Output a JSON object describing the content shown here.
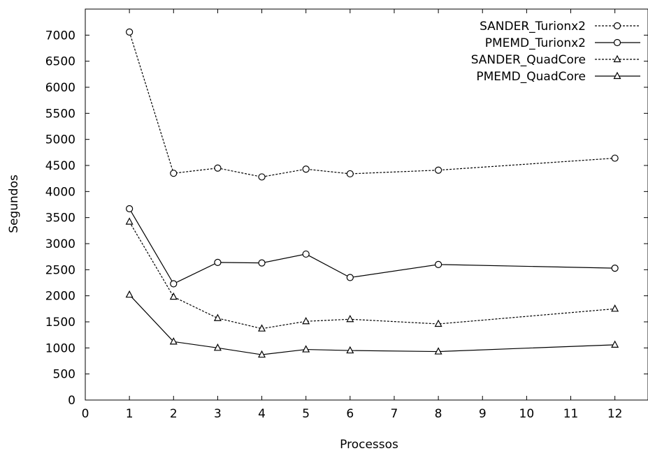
{
  "chart_data": {
    "type": "line",
    "xlabel": "Processos",
    "ylabel": "Segundos",
    "xlim": [
      0,
      12.75
    ],
    "ylim": [
      0,
      7500
    ],
    "xticks": [
      "0",
      "1",
      "2",
      "3",
      "4",
      "5",
      "6",
      "7",
      "8",
      "9",
      "10",
      "11",
      "12"
    ],
    "yticks": [
      "0",
      "500",
      "1000",
      "1500",
      "2000",
      "2500",
      "3000",
      "3500",
      "4000",
      "4500",
      "5000",
      "5500",
      "6000",
      "6500",
      "7000"
    ],
    "grid": false,
    "legend_position": "top-right",
    "x": [
      1,
      2,
      3,
      4,
      5,
      6,
      8,
      12
    ],
    "series": [
      {
        "name": "SANDER_Turionx2",
        "marker": "circle",
        "dash": "dashed",
        "values": [
          7060,
          4350,
          4450,
          4280,
          4430,
          4340,
          4410,
          4640
        ]
      },
      {
        "name": "PMEMD_Turionx2",
        "marker": "circle",
        "dash": "solid",
        "values": [
          3670,
          2230,
          2640,
          2630,
          2800,
          2350,
          2600,
          2530
        ]
      },
      {
        "name": "SANDER_QuadCore",
        "marker": "triangle",
        "dash": "dashed",
        "values": [
          3420,
          1980,
          1570,
          1370,
          1510,
          1550,
          1460,
          1750
        ]
      },
      {
        "name": "PMEMD_QuadCore",
        "marker": "triangle",
        "dash": "solid",
        "values": [
          2020,
          1120,
          1000,
          870,
          970,
          950,
          930,
          1060
        ]
      }
    ]
  }
}
